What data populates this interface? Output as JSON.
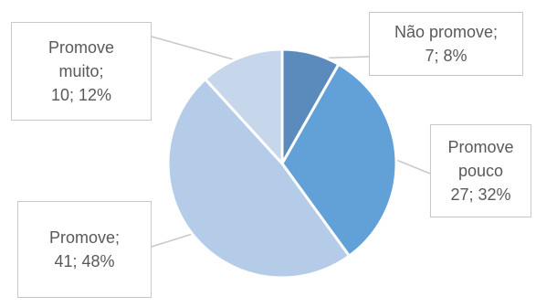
{
  "chart_data": {
    "type": "pie",
    "slices": [
      {
        "category": "Não promove",
        "value": 7,
        "percent": "8%",
        "color": "#5b8bbd"
      },
      {
        "category": "Promove pouco",
        "value": 27,
        "percent": "32%",
        "color": "#62a0d8"
      },
      {
        "category": "Promove",
        "value": 41,
        "percent": "48%",
        "color": "#b5cce8"
      },
      {
        "category": "Promove muito",
        "value": 10,
        "percent": "12%",
        "color": "#c6d6eb"
      }
    ],
    "labels": [
      {
        "lines": [
          "Não promove;",
          "7; 8%"
        ]
      },
      {
        "lines": [
          "Promove",
          "pouco",
          "27; 32%"
        ]
      },
      {
        "lines": [
          "Promove;",
          "41; 48%"
        ]
      },
      {
        "lines": [
          "Promove",
          "muito;",
          "10; 12%"
        ]
      }
    ]
  }
}
